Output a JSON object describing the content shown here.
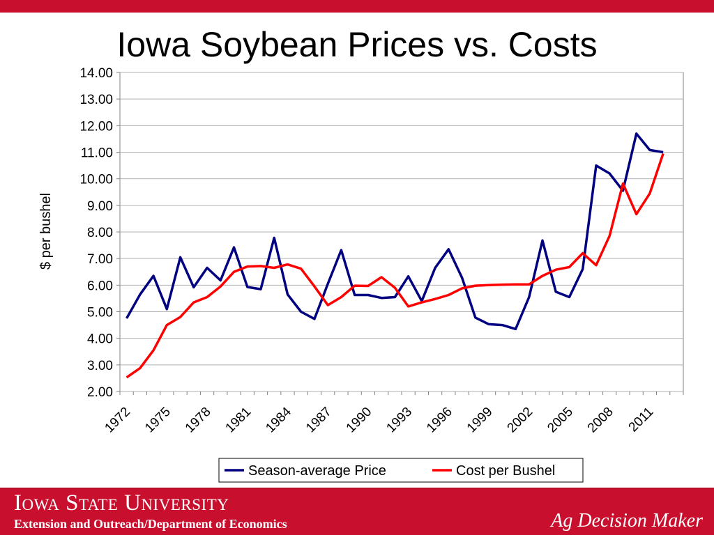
{
  "slide": {
    "title": "Iowa Soybean Prices vs. Costs"
  },
  "footer": {
    "university": "Iowa State University",
    "department": "Extension and Outreach/Department of Economics",
    "brand": "Ag Decision Maker"
  },
  "colors": {
    "accent_red": "#c8102e",
    "series_price": "#000080",
    "series_cost": "#ff0000"
  },
  "chart_data": {
    "type": "line",
    "title": "Iowa Soybean Prices vs. Costs",
    "xlabel": "",
    "ylabel": "$ per bushel",
    "ylim": [
      2,
      14
    ],
    "y_ticks": [
      "2.00",
      "3.00",
      "4.00",
      "5.00",
      "6.00",
      "7.00",
      "8.00",
      "9.00",
      "10.00",
      "11.00",
      "12.00",
      "13.00",
      "14.00"
    ],
    "x_tick_labels": [
      "1972",
      "1975",
      "1978",
      "1981",
      "1984",
      "1987",
      "1990",
      "1993",
      "1996",
      "1999",
      "2002",
      "2005",
      "2008",
      "2011"
    ],
    "x": [
      1972,
      1973,
      1974,
      1975,
      1976,
      1977,
      1978,
      1979,
      1980,
      1981,
      1982,
      1983,
      1984,
      1985,
      1986,
      1987,
      1988,
      1989,
      1990,
      1991,
      1992,
      1993,
      1994,
      1995,
      1996,
      1997,
      1998,
      1999,
      2000,
      2001,
      2002,
      2003,
      2004,
      2005,
      2006,
      2007,
      2008,
      2009,
      2010,
      2011,
      2012,
      2013
    ],
    "grid": true,
    "legend_position": "bottom",
    "series": [
      {
        "name": "Season-average Price",
        "values": [
          4.75,
          5.65,
          6.35,
          5.1,
          7.05,
          5.92,
          6.65,
          6.18,
          7.42,
          5.93,
          5.85,
          7.78,
          5.65,
          5.0,
          4.73,
          6.05,
          7.32,
          5.63,
          5.63,
          5.52,
          5.55,
          6.33,
          5.4,
          6.65,
          7.35,
          6.28,
          4.78,
          4.53,
          4.5,
          4.35,
          5.55,
          7.68,
          5.75,
          5.55,
          6.6,
          10.5,
          10.2,
          9.55,
          11.7,
          11.08,
          11.0,
          null
        ]
      },
      {
        "name": "Cost per Bushel",
        "values": [
          2.53,
          2.88,
          3.55,
          4.5,
          4.8,
          5.35,
          5.55,
          5.95,
          6.5,
          6.7,
          6.72,
          6.65,
          6.78,
          6.62,
          5.95,
          5.25,
          5.55,
          5.98,
          5.97,
          6.3,
          5.9,
          5.2,
          5.35,
          5.48,
          5.63,
          5.88,
          5.98,
          6.0,
          6.02,
          6.03,
          6.03,
          6.35,
          6.58,
          6.68,
          7.2,
          6.75,
          7.85,
          9.82,
          8.67,
          9.45,
          10.95,
          null
        ]
      }
    ]
  }
}
